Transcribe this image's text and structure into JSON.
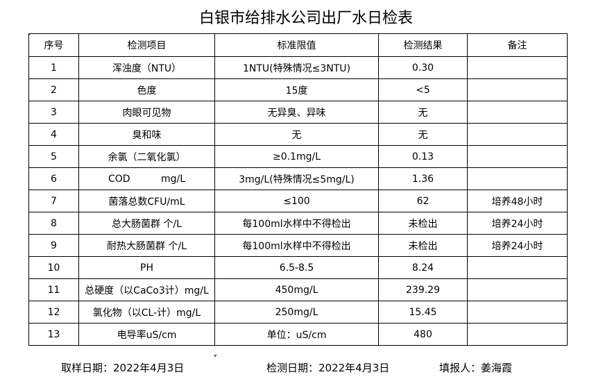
{
  "title": "白银市给排水公司出厂水日检表",
  "headers": [
    "序号",
    "检测项目",
    "标准限值",
    "检测结果",
    "备注"
  ],
  "rows": [
    [
      "1",
      "浑浊度（NTU）",
      "1NTU(特殊情况≤3NTU)",
      "0.30",
      ""
    ],
    [
      "2",
      "色度",
      "15度",
      "<5",
      ""
    ],
    [
      "3",
      "肉眼可见物",
      "无异臭、异味",
      "无",
      ""
    ],
    [
      "4",
      "臭和味",
      "无",
      "无",
      ""
    ],
    [
      "5",
      "余氯（二氧化氯）",
      "≥0.1mg/L",
      "0.13",
      ""
    ],
    [
      "6",
      "COD          mg/L",
      "3mg/L(特殊情况≤5mg/L)",
      "1.36",
      ""
    ],
    [
      "7",
      "菌落总数CFU/mL",
      "≤100",
      "62",
      "培养48小时"
    ],
    [
      "8",
      "总大肠菌群 个/L",
      "每100ml水样中不得检出",
      "未检出",
      "培养24小时"
    ],
    [
      "9",
      "耐热大肠菌群 个/L",
      "每100ml水样中不得检出",
      "未检出",
      "培养24小时"
    ],
    [
      "10",
      "PH",
      "6.5-8.5",
      "8.24",
      ""
    ],
    [
      "11",
      "总硬度（以CaCo3计）mg/L",
      "450mg/L",
      "239.29",
      ""
    ],
    [
      "12",
      "氯化物（以CL-计）mg/L",
      "250mg/L",
      "15.45",
      ""
    ],
    [
      "13",
      "电导率uS/cm",
      "单位：uS/cm",
      "480",
      ""
    ]
  ],
  "footer": {
    "sampling_date": "取样日期：2022年4月3日",
    "test_date": "检测日期：2022年4月3日",
    "reporter": "填报人：姜海霞"
  }
}
